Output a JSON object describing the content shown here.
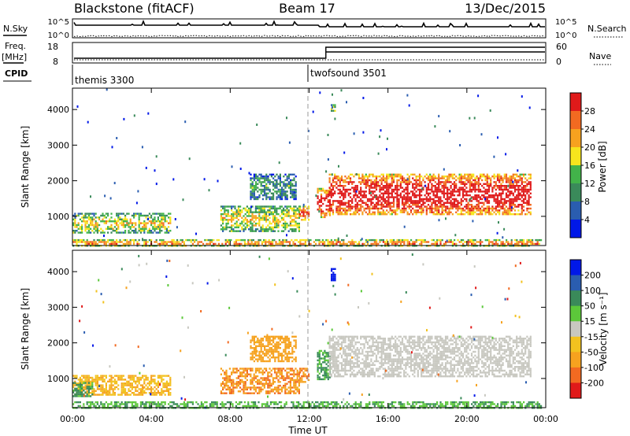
{
  "header": {
    "station": "Blackstone (fitACF)",
    "beam": "Beam 17",
    "date": "13/Dec/2015"
  },
  "labels": {
    "nsky": "N.Sky",
    "nsearch": "N.Search",
    "freq_line1": "Freq.",
    "freq_line2": "[MHz]",
    "nave": "Nave",
    "cpid": "CPID",
    "slant_range": "Slant Range [km]",
    "time_ut": "Time UT",
    "power_label": "Power [dB]",
    "velocity_label": "Velocity [m s⁻¹]"
  },
  "noise_axis": {
    "left": [
      "10^5",
      "10^0"
    ],
    "right": [
      "10^5",
      "10^0"
    ]
  },
  "freq_axis": {
    "left": [
      "18",
      "8"
    ],
    "right": [
      "60",
      "0"
    ]
  },
  "cpid_programs": [
    {
      "name": "themis 3300",
      "start_hour": 0
    },
    {
      "name": "twofsound 3501",
      "start_hour": 12
    }
  ],
  "colors": {
    "power_scale": [
      "#0018e8",
      "#2a5db0",
      "#3a8a5a",
      "#42b34a",
      "#f6e51d",
      "#f6a21f",
      "#f26a21",
      "#e01a1a"
    ],
    "velocity_scale": [
      "#e01a1a",
      "#f26a21",
      "#f6a21f",
      "#f2c21f",
      "#c8c8c0",
      "#5cc83a",
      "#3a8a5a",
      "#2a5db0",
      "#0018e8"
    ]
  },
  "chart_data": [
    {
      "type": "heatmap",
      "title": "Power",
      "xlabel": "Time UT",
      "ylabel": "Slant Range [km]",
      "colorbar_label": "Power [dB]",
      "x_ticks": [
        "00:00",
        "04:00",
        "08:00",
        "12:00",
        "16:00",
        "20:00",
        "00:00"
      ],
      "y_ticks": [
        "1000",
        "2000",
        "3000",
        "4000"
      ],
      "xlim_hours": [
        0,
        24
      ],
      "ylim_km": [
        180,
        4600
      ],
      "colorbar_ticks": [
        "28",
        "24",
        "20",
        "16",
        "12",
        "8",
        "4"
      ],
      "colorbar_range_db": [
        0,
        32
      ],
      "bands": [
        {
          "t0": 0.0,
          "t1": 5.0,
          "r0": 560,
          "r1": 1100,
          "level": 0.45
        },
        {
          "t0": 7.5,
          "t1": 11.5,
          "r0": 600,
          "r1": 1300,
          "level": 0.45
        },
        {
          "t0": 9.0,
          "t1": 11.3,
          "r0": 1500,
          "r1": 2200,
          "level": 0.25
        },
        {
          "t0": 11.5,
          "t1": 12.0,
          "r0": 900,
          "r1": 1300,
          "level": 0.7
        },
        {
          "t0": 12.4,
          "t1": 13.1,
          "r0": 1000,
          "r1": 1800,
          "level": 0.8
        },
        {
          "t0": 13.0,
          "t1": 23.2,
          "r0": 1050,
          "r1": 2200,
          "level": 0.85
        },
        {
          "t0": 13.1,
          "t1": 13.3,
          "r0": 3950,
          "r1": 4150,
          "level": 0.45
        },
        {
          "t0": 0.0,
          "t1": 23.8,
          "r0": 190,
          "r1": 360,
          "level": 0.6
        }
      ]
    },
    {
      "type": "heatmap",
      "title": "Velocity",
      "xlabel": "Time UT",
      "ylabel": "Slant Range [km]",
      "colorbar_label": "Velocity [m s⁻¹]",
      "x_ticks": [
        "00:00",
        "04:00",
        "08:00",
        "12:00",
        "16:00",
        "20:00",
        "00:00"
      ],
      "y_ticks": [
        "1000",
        "2000",
        "3000",
        "4000"
      ],
      "xlim_hours": [
        0,
        24
      ],
      "ylim_km": [
        180,
        4600
      ],
      "colorbar_ticks": [
        "200",
        "100",
        "50",
        "15",
        "-15",
        "-50",
        "-100",
        "-200"
      ],
      "bands": [
        {
          "t0": 0.0,
          "t1": 5.0,
          "r0": 560,
          "r1": 1100,
          "velocity": -30
        },
        {
          "t0": 0.0,
          "t1": 1.0,
          "r0": 500,
          "r1": 900,
          "velocity": 40
        },
        {
          "t0": 7.5,
          "t1": 11.5,
          "r0": 600,
          "r1": 1300,
          "velocity": -70
        },
        {
          "t0": 9.0,
          "t1": 11.3,
          "r0": 1500,
          "r1": 2200,
          "velocity": -60
        },
        {
          "t0": 11.5,
          "t1": 12.0,
          "r0": 900,
          "r1": 1300,
          "velocity": -70
        },
        {
          "t0": 12.4,
          "t1": 13.1,
          "r0": 1000,
          "r1": 1800,
          "velocity": 40
        },
        {
          "t0": 13.0,
          "t1": 23.2,
          "r0": 1050,
          "r1": 2200,
          "velocity": 0
        },
        {
          "t0": 13.1,
          "t1": 13.3,
          "r0": 3750,
          "r1": 4100,
          "velocity": 220
        },
        {
          "t0": 0.0,
          "t1": 23.8,
          "r0": 190,
          "r1": 360,
          "velocity": 30
        }
      ]
    }
  ]
}
